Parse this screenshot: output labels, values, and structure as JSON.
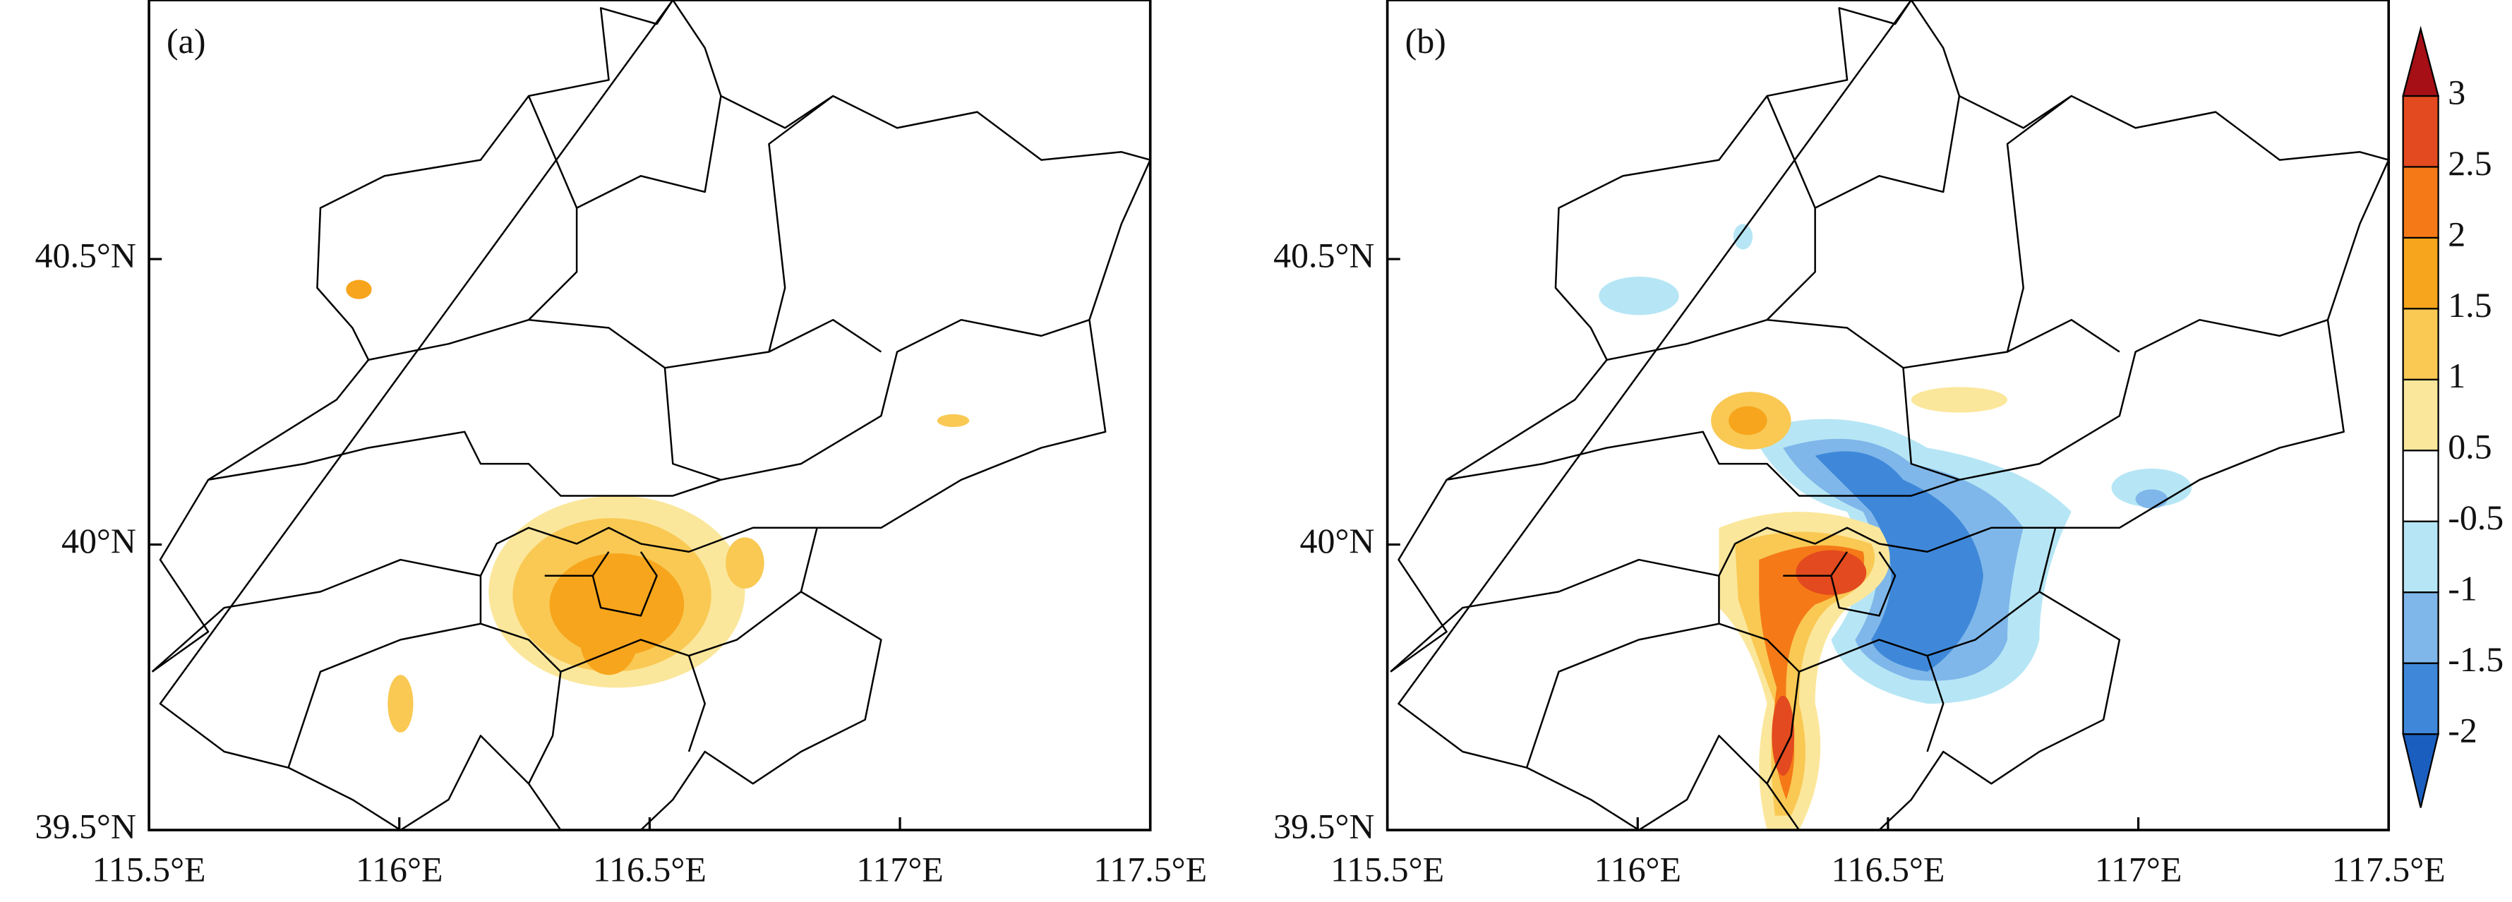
{
  "panels": [
    {
      "label": "(a)"
    },
    {
      "label": "(b)"
    }
  ],
  "x_tick_labels": [
    "115.5°E",
    "116°E",
    "116.5°E",
    "117°E",
    "117.5°E"
  ],
  "y_tick_labels": [
    "40.5°N",
    "40°N",
    "39.5°N"
  ],
  "colorbar": {
    "levels": [
      "-2",
      "-1.5",
      "-1",
      "-0.5",
      "0.5",
      "1",
      "1.5",
      "2",
      "2.5",
      "3"
    ],
    "colors": [
      "#1a5fc0",
      "#3f88d9",
      "#7fb7ea",
      "#b6e6f5",
      "#ffffff",
      "#fbe79c",
      "#f9c954",
      "#f7a51c",
      "#f57a17",
      "#e34a1f",
      "#a50f15"
    ]
  }
}
